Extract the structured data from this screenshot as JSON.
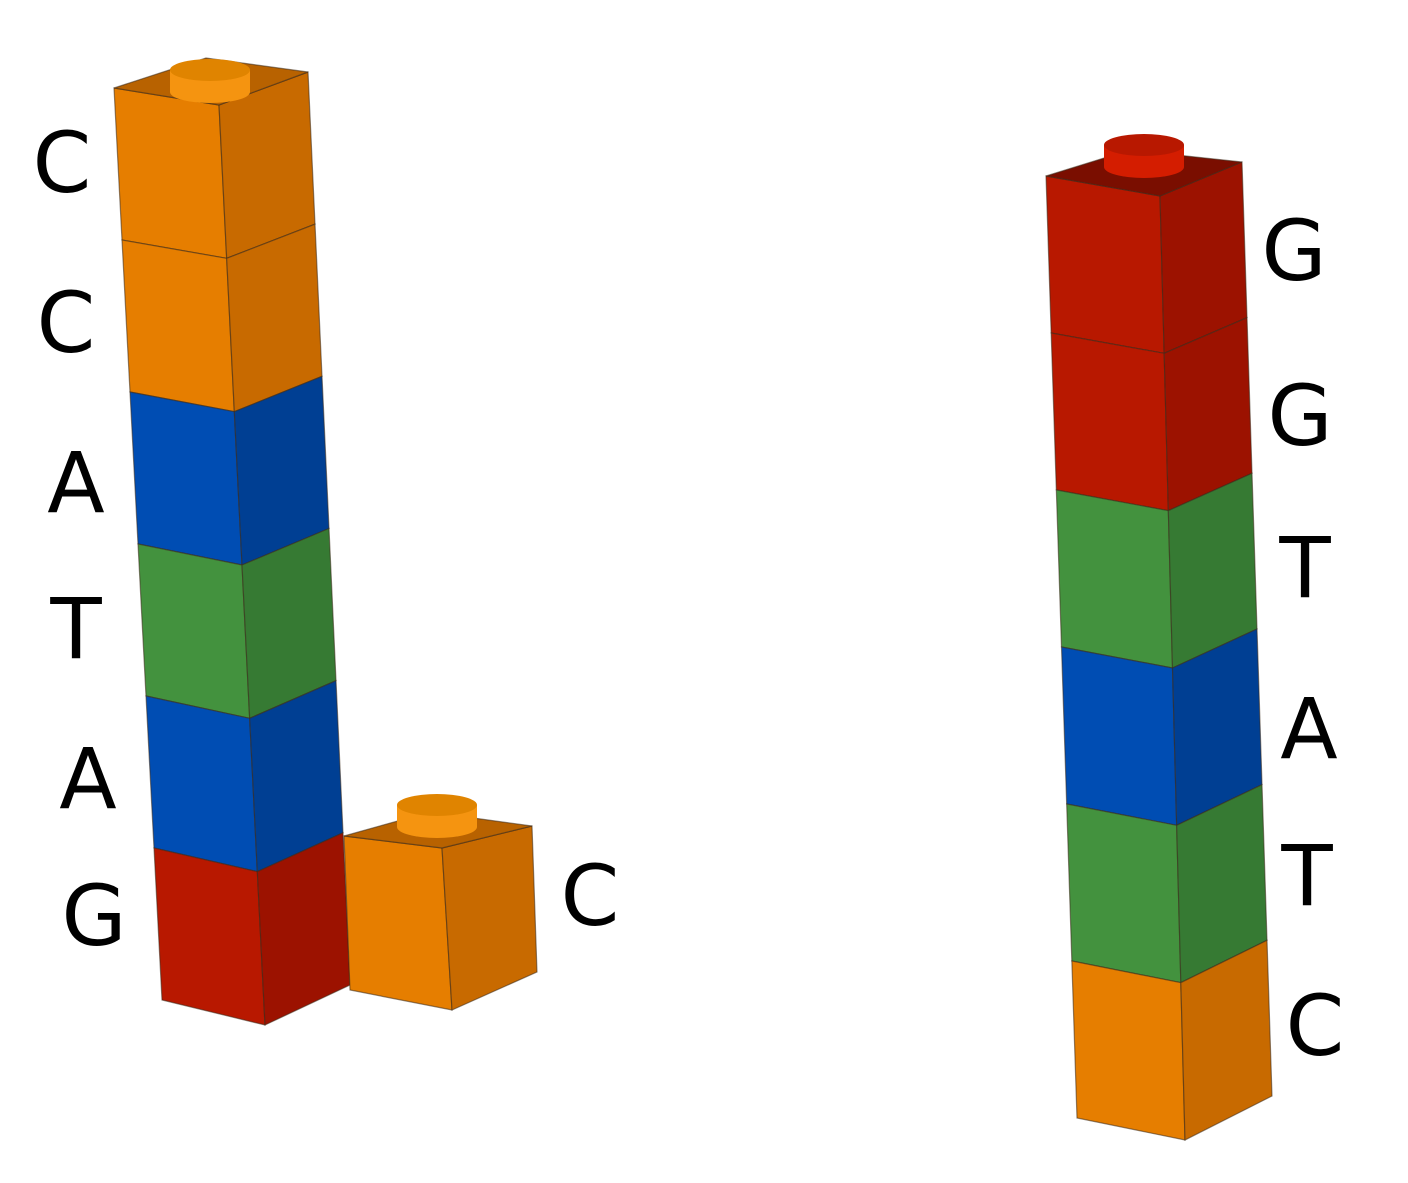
{
  "palette": {
    "C": {
      "front": "#e67e00",
      "side": "#c86a00",
      "top": "#b86200",
      "stud": "#f59410",
      "studTop": "#e08400"
    },
    "A": {
      "front": "#004db3",
      "side": "#003f93",
      "top": "#003a88",
      "stud": "#0a5cc4",
      "studTop": "#084ea8"
    },
    "T": {
      "front": "#43923e",
      "side": "#367a33",
      "top": "#2f6e2c",
      "stud": "#4fa548",
      "studTop": "#43923e"
    },
    "G": {
      "front": "#b81800",
      "side": "#9c1200",
      "top": "#7a0e00",
      "stud": "#d41d00",
      "studTop": "#b81800"
    }
  },
  "stacks": [
    {
      "id": "left-stack",
      "bricks_top_to_bottom": [
        "C",
        "C",
        "A",
        "T",
        "A",
        "G"
      ],
      "labels": [
        "C",
        "C",
        "A",
        "T",
        "A",
        "G"
      ]
    },
    {
      "id": "single-brick",
      "bricks_top_to_bottom": [
        "C"
      ],
      "labels": [
        "C"
      ]
    },
    {
      "id": "right-stack",
      "bricks_top_to_bottom": [
        "G",
        "G",
        "T",
        "A",
        "T",
        "C"
      ],
      "labels": [
        "G",
        "G",
        "T",
        "A",
        "T",
        "C"
      ]
    }
  ]
}
